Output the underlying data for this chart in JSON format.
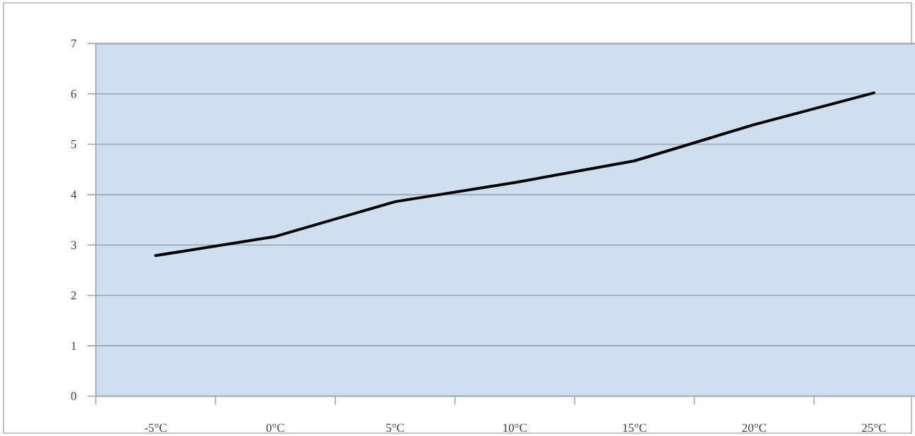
{
  "chart_data": {
    "type": "line",
    "categories": [
      "-5°C",
      "0°C",
      "5°C",
      "10°C",
      "15°C",
      "20°C",
      "25°C"
    ],
    "values": [
      2.79,
      3.17,
      3.86,
      4.24,
      4.67,
      5.39,
      6.02
    ],
    "color": "#000000",
    "ylim": [
      0,
      7
    ],
    "yticks": [
      0,
      1,
      2,
      3,
      4,
      5,
      6,
      7
    ],
    "grid": "y"
  }
}
